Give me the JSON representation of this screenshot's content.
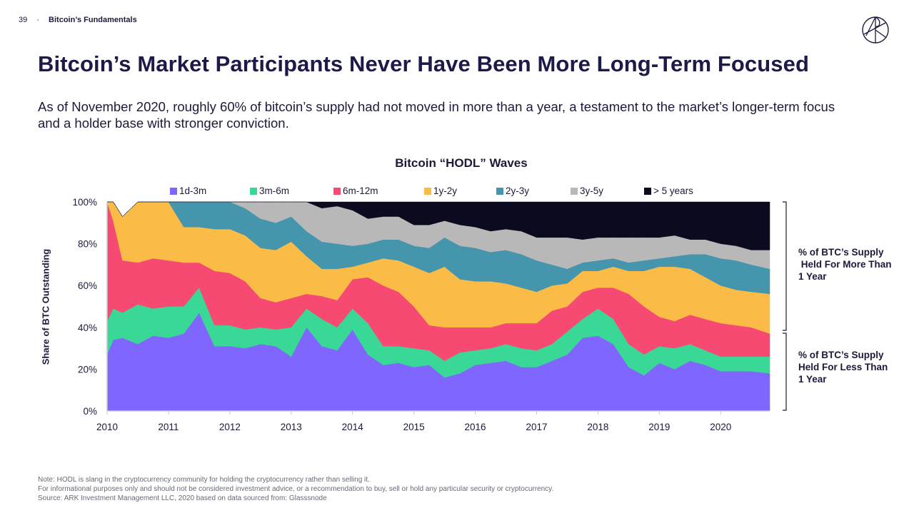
{
  "header": {
    "page_number": "39",
    "separator": "·",
    "section": "Bitcoin’s Fundamentals"
  },
  "logo": {
    "icon": "ark-logo-icon"
  },
  "title": "Bitcoin’s Market Participants Never Have Been More Long-Term Focused",
  "subtitle": "As of November 2020, roughly 60% of bitcoin’s supply had not moved in more than a year, a testament to the market’s longer-term focus and a holder base with stronger conviction.",
  "annotations": {
    "more_than_1y": "% of BTC’s Supply\n Held For More Than\n1 Year",
    "less_than_1y": "% of BTC’s Supply\nHeld For Less Than\n1 Year"
  },
  "notes": [
    "Note: HODL is slang in the cryptocurrency community for holding the cryptocurrency rather than selling it.",
    "For informational purposes only and should not be considered investment advice, or a recommendation to buy, sell or hold any particular security or cryptocurrency.",
    "Source: ARK Investment Management LLC, 2020 based on data sourced from: Glasssnode"
  ],
  "chart_data": {
    "type": "area",
    "stacked": true,
    "title": "Bitcoin “HODL” Waves",
    "xlabel": "",
    "ylabel": "Share of BTC Outstanding",
    "ylim": [
      0,
      100
    ],
    "xlim": [
      2010,
      2020.8
    ],
    "yticks": [
      "0%",
      "20%",
      "40%",
      "60%",
      "80%",
      "100%"
    ],
    "ytick_values": [
      0,
      20,
      40,
      60,
      80,
      100
    ],
    "xticks": [
      "2010",
      "2011",
      "2012",
      "2013",
      "2014",
      "2015",
      "2016",
      "2017",
      "2018",
      "2019",
      "2020"
    ],
    "xtick_values": [
      2010,
      2011,
      2012,
      2013,
      2014,
      2015,
      2016,
      2017,
      2018,
      2019,
      2020
    ],
    "legend_position": "top",
    "grid": false,
    "x": [
      2010.0,
      2010.1,
      2010.25,
      2010.5,
      2010.75,
      2011.0,
      2011.25,
      2011.5,
      2011.75,
      2012.0,
      2012.25,
      2012.5,
      2012.75,
      2013.0,
      2013.25,
      2013.5,
      2013.75,
      2014.0,
      2014.25,
      2014.5,
      2014.75,
      2015.0,
      2015.25,
      2015.5,
      2015.75,
      2016.0,
      2016.25,
      2016.5,
      2016.75,
      2017.0,
      2017.25,
      2017.5,
      2017.75,
      2018.0,
      2018.25,
      2018.5,
      2018.75,
      2019.0,
      2019.25,
      2019.5,
      2019.75,
      2020.0,
      2020.25,
      2020.5,
      2020.8
    ],
    "series": [
      {
        "name": "1d-3m",
        "color": "#7f66ff",
        "values": [
          27,
          34,
          35,
          32,
          36,
          35,
          37,
          47,
          31,
          31,
          30,
          32,
          31,
          26,
          40,
          31,
          29,
          39,
          27,
          22,
          23,
          21,
          22,
          16,
          18,
          22,
          23,
          24,
          21,
          21,
          24,
          27,
          35,
          36,
          32,
          21,
          17,
          23,
          20,
          24,
          22,
          19,
          19,
          19,
          18
        ]
      },
      {
        "name": "3m-6m",
        "color": "#3ad896",
        "values": [
          16,
          15,
          12,
          19,
          13,
          15,
          13,
          12,
          10,
          10,
          9,
          8,
          8,
          14,
          9,
          13,
          11,
          10,
          15,
          9,
          8,
          9,
          7,
          8,
          10,
          7,
          7,
          8,
          9,
          8,
          8,
          11,
          9,
          13,
          12,
          11,
          10,
          8,
          10,
          8,
          7,
          7,
          7,
          7,
          8
        ]
      },
      {
        "name": "6m-12m",
        "color": "#f74a72",
        "values": [
          57,
          42,
          25,
          20,
          24,
          22,
          21,
          12,
          26,
          25,
          23,
          14,
          13,
          14,
          7,
          11,
          13,
          14,
          22,
          29,
          26,
          20,
          12,
          16,
          12,
          11,
          10,
          10,
          12,
          13,
          16,
          12,
          13,
          10,
          15,
          24,
          23,
          14,
          13,
          14,
          15,
          16,
          15,
          14,
          11
        ]
      },
      {
        "name": "1y-2y",
        "color": "#fbbb47",
        "values": [
          0,
          9,
          21,
          29,
          27,
          28,
          17,
          17,
          20,
          21,
          22,
          24,
          25,
          27,
          18,
          13,
          15,
          6,
          7,
          13,
          15,
          19,
          25,
          29,
          23,
          22,
          22,
          19,
          17,
          15,
          12,
          11,
          10,
          8,
          10,
          11,
          17,
          24,
          26,
          22,
          20,
          18,
          17,
          17,
          19
        ]
      },
      {
        "name": "2y-3y",
        "color": "#4595ac",
        "values": [
          0,
          0,
          0,
          0,
          0,
          0,
          12,
          12,
          13,
          13,
          13,
          14,
          13,
          12,
          12,
          13,
          12,
          10,
          9,
          9,
          10,
          10,
          12,
          14,
          16,
          16,
          14,
          16,
          16,
          15,
          10,
          7,
          4,
          5,
          4,
          4,
          5,
          4,
          5,
          7,
          11,
          13,
          14,
          13,
          12
        ]
      },
      {
        "name": "3y-5y",
        "color": "#b8b8b8",
        "values": [
          0,
          0,
          0,
          0,
          0,
          0,
          0,
          0,
          0,
          0,
          3,
          8,
          10,
          11,
          14,
          16,
          18,
          17,
          12,
          11,
          11,
          10,
          11,
          8,
          10,
          10,
          10,
          10,
          11,
          11,
          13,
          15,
          11,
          11,
          10,
          12,
          11,
          10,
          10,
          7,
          7,
          7,
          7,
          7,
          9
        ]
      },
      {
        "name": "> 5 years",
        "color": "#0b0a1f",
        "values": [
          0,
          0,
          0,
          0,
          0,
          0,
          0,
          0,
          0,
          0,
          0,
          0,
          0,
          0,
          0,
          3,
          2,
          4,
          8,
          7,
          7,
          11,
          11,
          9,
          11,
          12,
          14,
          13,
          14,
          17,
          17,
          17,
          18,
          17,
          17,
          17,
          17,
          17,
          16,
          18,
          18,
          20,
          21,
          23,
          23
        ]
      }
    ]
  }
}
